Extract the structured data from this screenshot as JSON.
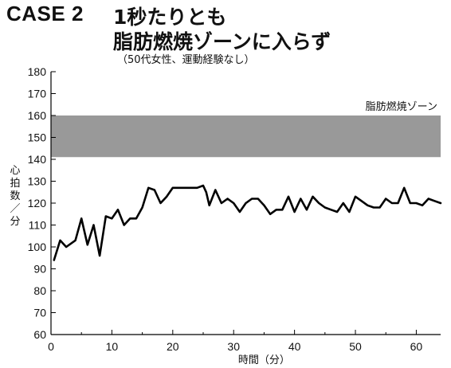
{
  "header": {
    "case_label": "CASE 2",
    "title_line1": "1秒たりとも",
    "title_line2": "脂肪燃焼ゾーンに入らず",
    "subtitle": "（50代女性、運動経験なし）"
  },
  "chart_data": {
    "type": "line",
    "xlabel": "時間（分）",
    "ylabel": "心拍数／分",
    "ylabel_chars": [
      "心",
      "拍",
      "数",
      "／",
      "分"
    ],
    "xlim": [
      0,
      64
    ],
    "ylim": [
      60,
      180
    ],
    "xticks": [
      0,
      10,
      20,
      30,
      40,
      50,
      60
    ],
    "yticks": [
      60,
      70,
      80,
      90,
      100,
      110,
      120,
      130,
      140,
      150,
      160,
      170,
      180
    ],
    "band": {
      "label": "脂肪燃焼ゾーン",
      "y0": 141,
      "y1": 160,
      "color": "#999999"
    },
    "series": [
      {
        "color": "#000000",
        "x": [
          0.5,
          1.5,
          2.5,
          4,
          5,
          6,
          7,
          8,
          9,
          10,
          11,
          12,
          13,
          14,
          15,
          16,
          17,
          18,
          19,
          20,
          21,
          22,
          23,
          24,
          25,
          25.5,
          26,
          27,
          28,
          29,
          30,
          31,
          32,
          33,
          34,
          35,
          36,
          37,
          38,
          39,
          40,
          41,
          42,
          43,
          44,
          45,
          46,
          47,
          48,
          49,
          50,
          51,
          52,
          53,
          54,
          55,
          56,
          57,
          58,
          59,
          60,
          61,
          62,
          63,
          64
        ],
        "y": [
          94,
          103,
          100,
          103,
          113,
          101,
          110,
          96,
          114,
          113,
          117,
          110,
          113,
          113,
          118,
          127,
          126,
          120,
          123,
          127,
          127,
          127,
          127,
          127,
          128,
          125,
          119,
          126,
          120,
          122,
          120,
          116,
          120,
          122,
          122,
          119,
          115,
          117,
          117,
          123,
          116,
          122,
          117,
          123,
          120,
          118,
          117,
          116,
          120,
          116,
          123,
          121,
          119,
          118,
          118,
          122,
          120,
          120,
          127,
          120,
          120,
          119,
          122,
          121,
          120
        ]
      }
    ]
  }
}
